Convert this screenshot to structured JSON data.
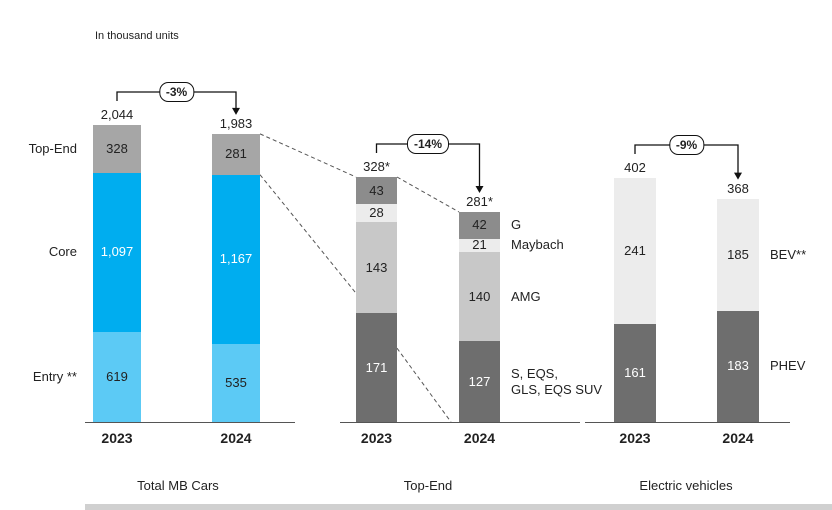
{
  "subtitle": "In thousand units",
  "chart_data": [
    {
      "type": "stacked_bar",
      "title": "Total MB Cars",
      "categories": [
        "2023",
        "2024"
      ],
      "legend_side": "left",
      "change": "-3%",
      "totals": [
        {
          "value": 2044,
          "label": "2,044"
        },
        {
          "value": 1983,
          "label": "1,983"
        }
      ],
      "series": [
        {
          "name": "Entry **",
          "color": "#5ccaf5",
          "text_color": "#222222",
          "values": [
            619,
            535
          ]
        },
        {
          "name": "Core",
          "color": "#00adef",
          "text_color": "#ffffff",
          "values": [
            1097,
            1167
          ],
          "value_labels": [
            "1,097",
            "1,167"
          ]
        },
        {
          "name": "Top-End",
          "color": "#a6a6a6",
          "text_color": "#222222",
          "values": [
            328,
            281
          ]
        }
      ]
    },
    {
      "type": "stacked_bar",
      "title": "Top-End",
      "categories": [
        "2023",
        "2024"
      ],
      "legend_side": "right",
      "change": "-14%",
      "totals": [
        {
          "value": 328,
          "label": "328*"
        },
        {
          "value": 281,
          "label": "281*"
        }
      ],
      "series": [
        {
          "name": "S, EQS,\nGLS, EQS SUV",
          "color": "#6e6e6e",
          "text_color": "#ffffff",
          "values": [
            171,
            127
          ]
        },
        {
          "name": "AMG",
          "color": "#c8c8c8",
          "text_color": "#222222",
          "values": [
            143,
            140
          ]
        },
        {
          "name": "Maybach",
          "color": "#ececec",
          "text_color": "#222222",
          "values": [
            28,
            21
          ]
        },
        {
          "name": "G",
          "color": "#8c8c8c",
          "text_color": "#222222",
          "values": [
            43,
            42
          ]
        }
      ]
    },
    {
      "type": "stacked_bar",
      "title": "Electric vehicles",
      "categories": [
        "2023",
        "2024"
      ],
      "legend_side": "right",
      "change": "-9%",
      "totals": [
        402,
        368
      ],
      "series": [
        {
          "name": "PHEV",
          "color": "#6e6e6e",
          "text_color": "#ffffff",
          "values": [
            161,
            183
          ]
        },
        {
          "name": "BEV**",
          "color": "#ececec",
          "text_color": "#222222",
          "values": [
            241,
            185
          ]
        }
      ]
    }
  ]
}
